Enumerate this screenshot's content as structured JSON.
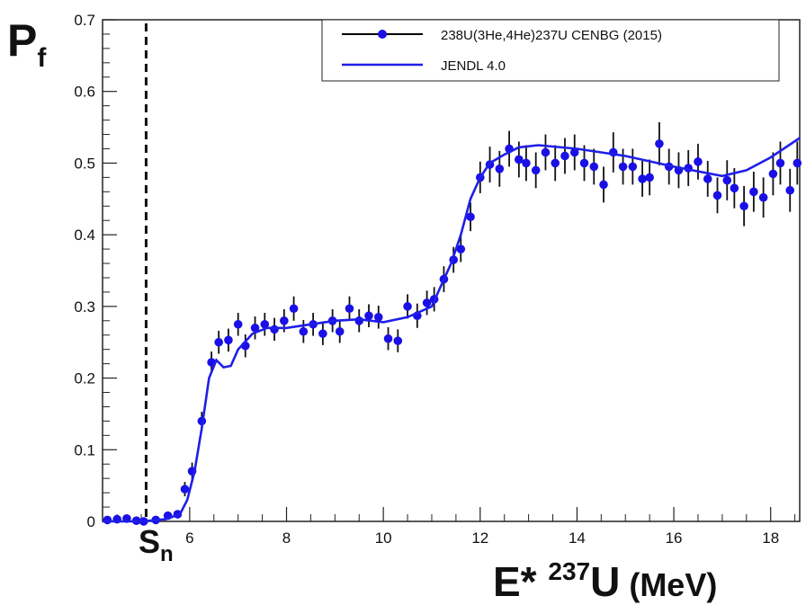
{
  "colors": {
    "data": "#1a10e6",
    "model": "#1f1fe8",
    "axis": "#222222",
    "sn_line": "#111111"
  },
  "axis_labels": {
    "y_main": "P",
    "y_sub": "f",
    "x_prefix": "E* ",
    "x_sup": "237",
    "x_element": "U",
    "x_unit": " (MeV)",
    "sn_main": "S",
    "sn_sub": "n"
  },
  "chart_data": {
    "type": "scatter",
    "title": "",
    "xlim": [
      4.2,
      18.6
    ],
    "ylim": [
      0,
      0.7
    ],
    "x_ticks": [
      6,
      8,
      10,
      12,
      14,
      16,
      18
    ],
    "x_tick_labels": [
      "6",
      "8",
      "10",
      "12",
      "14",
      "16",
      "18"
    ],
    "y_ticks": [
      0,
      0.1,
      0.2,
      0.3,
      0.4,
      0.5,
      0.6,
      0.7
    ],
    "y_tick_labels": [
      "0",
      "0.1",
      "0.2",
      "0.3",
      "0.4",
      "0.5",
      "0.6",
      "0.7"
    ],
    "legend_position": "top-right",
    "sn_energy": 5.1,
    "series": [
      {
        "name": "238U(3He,4He)237U CENBG (2015)",
        "kind": "points-with-errors",
        "points": [
          {
            "x": 4.3,
            "y": 0.002,
            "err": 0.004
          },
          {
            "x": 4.5,
            "y": 0.003,
            "err": 0.004
          },
          {
            "x": 4.7,
            "y": 0.004,
            "err": 0.004
          },
          {
            "x": 4.9,
            "y": 0.001,
            "err": 0.004
          },
          {
            "x": 5.05,
            "y": 0.0,
            "err": 0.004
          },
          {
            "x": 5.3,
            "y": 0.002,
            "err": 0.004
          },
          {
            "x": 5.55,
            "y": 0.008,
            "err": 0.005
          },
          {
            "x": 5.75,
            "y": 0.01,
            "err": 0.005
          },
          {
            "x": 5.9,
            "y": 0.045,
            "err": 0.01
          },
          {
            "x": 6.05,
            "y": 0.07,
            "err": 0.012
          },
          {
            "x": 6.25,
            "y": 0.14,
            "err": 0.013
          },
          {
            "x": 6.45,
            "y": 0.222,
            "err": 0.015
          },
          {
            "x": 6.6,
            "y": 0.25,
            "err": 0.016
          },
          {
            "x": 6.8,
            "y": 0.253,
            "err": 0.016
          },
          {
            "x": 7.0,
            "y": 0.275,
            "err": 0.016
          },
          {
            "x": 7.15,
            "y": 0.245,
            "err": 0.016
          },
          {
            "x": 7.35,
            "y": 0.27,
            "err": 0.016
          },
          {
            "x": 7.55,
            "y": 0.275,
            "err": 0.016
          },
          {
            "x": 7.75,
            "y": 0.268,
            "err": 0.016
          },
          {
            "x": 7.95,
            "y": 0.28,
            "err": 0.016
          },
          {
            "x": 8.15,
            "y": 0.297,
            "err": 0.017
          },
          {
            "x": 8.35,
            "y": 0.265,
            "err": 0.016
          },
          {
            "x": 8.55,
            "y": 0.275,
            "err": 0.016
          },
          {
            "x": 8.75,
            "y": 0.262,
            "err": 0.016
          },
          {
            "x": 8.95,
            "y": 0.28,
            "err": 0.016
          },
          {
            "x": 9.1,
            "y": 0.265,
            "err": 0.016
          },
          {
            "x": 9.3,
            "y": 0.297,
            "err": 0.017
          },
          {
            "x": 9.5,
            "y": 0.28,
            "err": 0.016
          },
          {
            "x": 9.7,
            "y": 0.287,
            "err": 0.016
          },
          {
            "x": 9.9,
            "y": 0.285,
            "err": 0.016
          },
          {
            "x": 10.1,
            "y": 0.255,
            "err": 0.016
          },
          {
            "x": 10.3,
            "y": 0.252,
            "err": 0.016
          },
          {
            "x": 10.5,
            "y": 0.3,
            "err": 0.017
          },
          {
            "x": 10.7,
            "y": 0.287,
            "err": 0.017
          },
          {
            "x": 10.9,
            "y": 0.305,
            "err": 0.017
          },
          {
            "x": 11.05,
            "y": 0.31,
            "err": 0.017
          },
          {
            "x": 11.25,
            "y": 0.338,
            "err": 0.018
          },
          {
            "x": 11.45,
            "y": 0.365,
            "err": 0.018
          },
          {
            "x": 11.6,
            "y": 0.38,
            "err": 0.018
          },
          {
            "x": 11.8,
            "y": 0.425,
            "err": 0.02
          },
          {
            "x": 12.0,
            "y": 0.48,
            "err": 0.022
          },
          {
            "x": 12.2,
            "y": 0.498,
            "err": 0.025
          },
          {
            "x": 12.4,
            "y": 0.492,
            "err": 0.025
          },
          {
            "x": 12.6,
            "y": 0.52,
            "err": 0.025
          },
          {
            "x": 12.8,
            "y": 0.505,
            "err": 0.025
          },
          {
            "x": 12.95,
            "y": 0.5,
            "err": 0.025
          },
          {
            "x": 13.15,
            "y": 0.49,
            "err": 0.025
          },
          {
            "x": 13.35,
            "y": 0.515,
            "err": 0.025
          },
          {
            "x": 13.55,
            "y": 0.5,
            "err": 0.025
          },
          {
            "x": 13.75,
            "y": 0.51,
            "err": 0.025
          },
          {
            "x": 13.95,
            "y": 0.515,
            "err": 0.025
          },
          {
            "x": 14.15,
            "y": 0.5,
            "err": 0.025
          },
          {
            "x": 14.35,
            "y": 0.495,
            "err": 0.025
          },
          {
            "x": 14.55,
            "y": 0.47,
            "err": 0.025
          },
          {
            "x": 14.75,
            "y": 0.515,
            "err": 0.028
          },
          {
            "x": 14.95,
            "y": 0.495,
            "err": 0.025
          },
          {
            "x": 15.15,
            "y": 0.495,
            "err": 0.025
          },
          {
            "x": 15.35,
            "y": 0.478,
            "err": 0.025
          },
          {
            "x": 15.5,
            "y": 0.48,
            "err": 0.025
          },
          {
            "x": 15.7,
            "y": 0.527,
            "err": 0.03
          },
          {
            "x": 15.9,
            "y": 0.495,
            "err": 0.025
          },
          {
            "x": 16.1,
            "y": 0.49,
            "err": 0.025
          },
          {
            "x": 16.3,
            "y": 0.493,
            "err": 0.025
          },
          {
            "x": 16.5,
            "y": 0.502,
            "err": 0.025
          },
          {
            "x": 16.7,
            "y": 0.478,
            "err": 0.025
          },
          {
            "x": 16.9,
            "y": 0.455,
            "err": 0.025
          },
          {
            "x": 17.1,
            "y": 0.476,
            "err": 0.028
          },
          {
            "x": 17.25,
            "y": 0.465,
            "err": 0.028
          },
          {
            "x": 17.45,
            "y": 0.44,
            "err": 0.028
          },
          {
            "x": 17.65,
            "y": 0.46,
            "err": 0.028
          },
          {
            "x": 17.85,
            "y": 0.452,
            "err": 0.028
          },
          {
            "x": 18.05,
            "y": 0.485,
            "err": 0.03
          },
          {
            "x": 18.2,
            "y": 0.5,
            "err": 0.03
          },
          {
            "x": 18.4,
            "y": 0.462,
            "err": 0.03
          },
          {
            "x": 18.55,
            "y": 0.5,
            "err": 0.03
          }
        ]
      },
      {
        "name": "JENDL 4.0",
        "kind": "line",
        "x": [
          4.2,
          5.0,
          5.5,
          5.8,
          5.95,
          6.1,
          6.25,
          6.4,
          6.55,
          6.7,
          6.85,
          7.0,
          7.3,
          7.6,
          8.0,
          8.5,
          9.0,
          9.5,
          10.0,
          10.5,
          11.0,
          11.2,
          11.4,
          11.6,
          11.8,
          12.0,
          12.2,
          12.5,
          12.8,
          13.2,
          14.0,
          15.0,
          16.0,
          17.0,
          17.5,
          18.0,
          18.6
        ],
        "y": [
          0.0,
          0.0,
          0.003,
          0.01,
          0.03,
          0.07,
          0.13,
          0.2,
          0.225,
          0.215,
          0.217,
          0.24,
          0.262,
          0.27,
          0.27,
          0.275,
          0.28,
          0.282,
          0.278,
          0.285,
          0.3,
          0.33,
          0.36,
          0.4,
          0.45,
          0.48,
          0.5,
          0.512,
          0.522,
          0.525,
          0.52,
          0.51,
          0.495,
          0.482,
          0.49,
          0.508,
          0.535
        ]
      }
    ]
  }
}
